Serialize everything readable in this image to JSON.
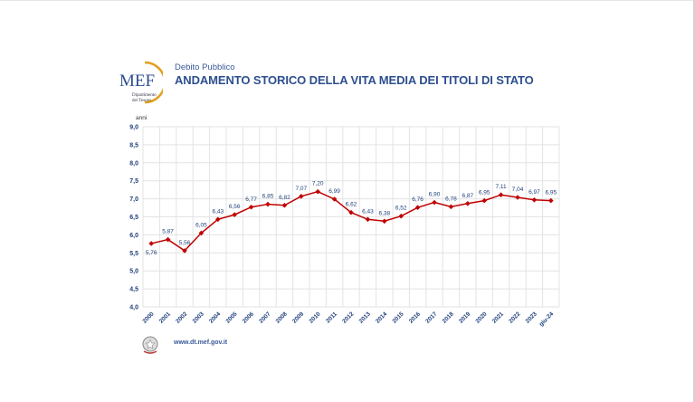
{
  "header": {
    "logo_text": "MEF",
    "logo_subtext": "Dipartimento del Tesoro",
    "subtitle": "Debito Pubblico",
    "title": "ANDAMENTO STORICO DELLA VITA MEDIA DEI TITOLI DI STATO"
  },
  "footer": {
    "url": "www.dt.mef.gov.it"
  },
  "chart_data": {
    "type": "line",
    "title": "ANDAMENTO STORICO DELLA VITA MEDIA DEI TITOLI DI STATO",
    "ylabel": "anni",
    "xlabel": "",
    "ylim": [
      4.0,
      9.0
    ],
    "yticks": [
      "4,0",
      "4,5",
      "5,0",
      "5,5",
      "6,0",
      "6,5",
      "7,0",
      "7,5",
      "8,0",
      "8,5",
      "9,0"
    ],
    "grid": true,
    "categories": [
      "2000",
      "2001",
      "2002",
      "2003",
      "2004",
      "2005",
      "2006",
      "2007",
      "2008",
      "2009",
      "2010",
      "2011",
      "2012",
      "2013",
      "2014",
      "2015",
      "2016",
      "2017",
      "2018",
      "2019",
      "2020",
      "2021",
      "2022",
      "2023",
      "giu-24"
    ],
    "values": [
      5.76,
      5.87,
      5.56,
      6.05,
      6.43,
      6.56,
      6.77,
      6.85,
      6.82,
      7.07,
      7.2,
      6.99,
      6.62,
      6.43,
      6.38,
      6.52,
      6.76,
      6.9,
      6.78,
      6.87,
      6.95,
      7.11,
      7.04,
      6.97,
      6.95
    ],
    "data_labels": [
      "5,76",
      "5,87",
      "5,56",
      "6,05",
      "6,43",
      "6,56",
      "6,77",
      "6,85",
      "6,82",
      "7,07",
      "7,20",
      "6,99",
      "6,62",
      "6,43",
      "6,38",
      "6,52",
      "6,76",
      "6,90",
      "6,78",
      "6,87",
      "6,95",
      "7,11",
      "7,04",
      "6,97",
      "6,95"
    ],
    "line_color": "#c00000",
    "label_color": "#1f3f7a"
  }
}
